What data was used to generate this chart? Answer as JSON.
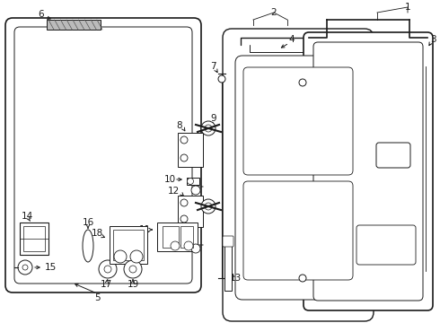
{
  "bg_color": "#ffffff",
  "lc": "#1a1a1a",
  "label_fs": 7.5,
  "fig_w": 4.9,
  "fig_h": 3.6,
  "dpi": 100
}
